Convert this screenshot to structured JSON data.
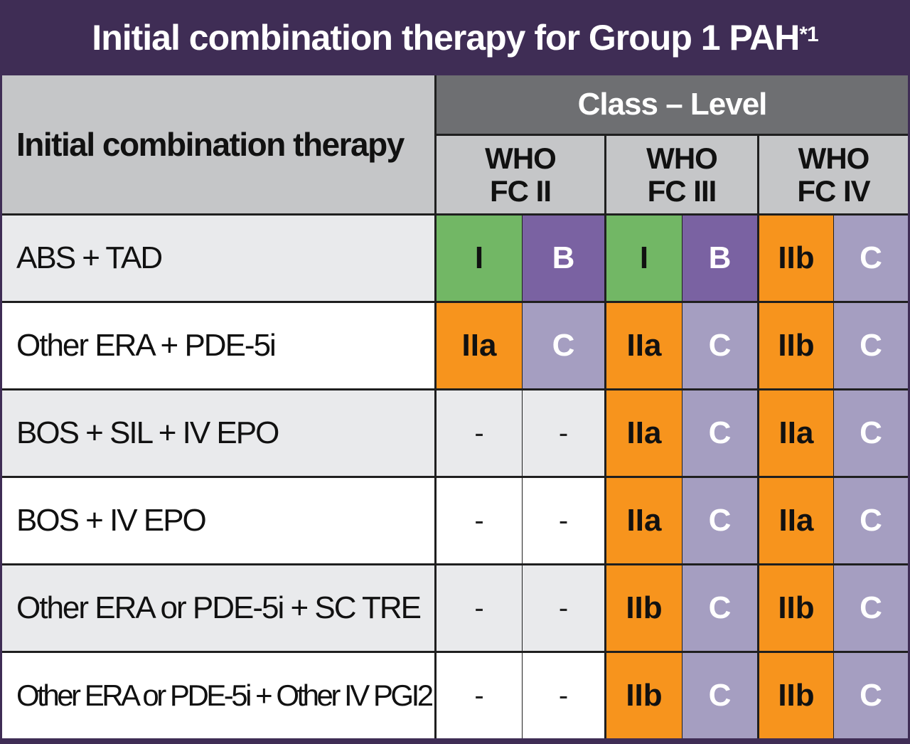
{
  "title": {
    "text": "Initial combination therapy for Group 1 PAH",
    "superscript": "*1"
  },
  "header": {
    "therapy_column": "Initial combination therapy",
    "class_level": "Class – Level",
    "fc_columns": [
      {
        "line1": "WHO",
        "line2": "FC II"
      },
      {
        "line1": "WHO",
        "line2": "FC III"
      },
      {
        "line1": "WHO",
        "line2": "FC IV"
      }
    ]
  },
  "rows": [
    {
      "therapy": "ABS + TAD",
      "values": [
        "I",
        "B",
        "I",
        "B",
        "IIb",
        "C"
      ]
    },
    {
      "therapy": "Other ERA + PDE-5i",
      "values": [
        "IIa",
        "C",
        "IIa",
        "C",
        "IIb",
        "C"
      ]
    },
    {
      "therapy": "BOS + SIL + IV EPO",
      "values": [
        "-",
        "-",
        "IIa",
        "C",
        "IIa",
        "C"
      ]
    },
    {
      "therapy": "BOS + IV EPO",
      "values": [
        "-",
        "-",
        "IIa",
        "C",
        "IIa",
        "C"
      ]
    },
    {
      "therapy": "Other ERA or PDE-5i + SC TRE",
      "values": [
        "-",
        "-",
        "IIb",
        "C",
        "IIb",
        "C"
      ]
    },
    {
      "therapy": "Other ERA or PDE-5i + Other IV PGI2",
      "values": [
        "-",
        "-",
        "IIb",
        "C",
        "IIb",
        "C"
      ]
    }
  ],
  "colors": {
    "background": "#3f2d55",
    "class_I": "#72b765",
    "level_B": "#7a62a2",
    "class_IIa_IIb": "#f7941d",
    "level_C": "#a59ec1",
    "header_grey": "#c5c6c8",
    "header_dark": "#6e6f72"
  }
}
